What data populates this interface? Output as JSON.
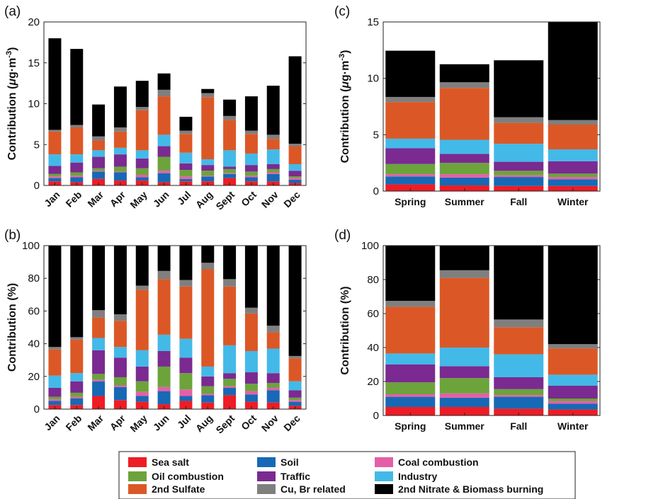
{
  "sources": [
    {
      "key": "sea_salt",
      "name": "Sea salt",
      "color": "#ee1c24"
    },
    {
      "key": "soil",
      "name": "Soil",
      "color": "#1769b5"
    },
    {
      "key": "coal",
      "name": "Coal combustion",
      "color": "#e55fa6"
    },
    {
      "key": "oil",
      "name": "Oil combustion",
      "color": "#6ca33b"
    },
    {
      "key": "traffic",
      "name": "Traffic",
      "color": "#7a2a90"
    },
    {
      "key": "industry",
      "name": "Industry",
      "color": "#43b9e8"
    },
    {
      "key": "sulfate",
      "name": "2nd Sulfate",
      "color": "#db5826"
    },
    {
      "key": "cubr",
      "name": "Cu, Br related",
      "color": "#7f7f7f"
    },
    {
      "key": "nitrate",
      "name": "2nd Nitrate & Biomass burning",
      "color": "#000000"
    }
  ],
  "chart_data": [
    {
      "panel": "(a)",
      "type": "bar",
      "stacked": true,
      "ylabel": "Contribution (μg·m⁻³)",
      "ylabel_main": "Contribution (",
      "ylabel_mu": "μ",
      "ylabel_unit": "g·m",
      "ylabel_exp": "-3",
      "ylabel_close": ")",
      "ylim": [
        0,
        20
      ],
      "yticks": [
        0,
        5,
        10,
        15,
        20
      ],
      "categories": [
        "Jan",
        "Feb",
        "Mar",
        "Apr",
        "May",
        "Jun",
        "Jul",
        "Aug",
        "Sept",
        "Oct",
        "Nov",
        "Dec"
      ],
      "series": [
        {
          "name": "Sea salt",
          "values": [
            0.5,
            0.4,
            0.8,
            0.6,
            0.6,
            0.4,
            0.5,
            0.5,
            0.9,
            0.5,
            0.5,
            0.3
          ]
        },
        {
          "name": "Soil",
          "values": [
            0.4,
            0.6,
            0.9,
            1.0,
            0.4,
            1.1,
            0.3,
            0.6,
            0.5,
            0.5,
            0.9,
            0.4
          ]
        },
        {
          "name": "Coal combustion",
          "values": [
            0.2,
            0.2,
            0.1,
            0.1,
            0.3,
            0.3,
            0.3,
            0.1,
            0.1,
            0.2,
            0.2,
            0.2
          ]
        },
        {
          "name": "Oil combustion",
          "values": [
            0.3,
            0.4,
            0.3,
            0.6,
            0.8,
            1.7,
            0.8,
            0.6,
            0.5,
            0.5,
            0.4,
            0.2
          ]
        },
        {
          "name": "Traffic",
          "values": [
            1.0,
            1.2,
            1.4,
            1.5,
            1.2,
            1.3,
            0.8,
            0.7,
            0.3,
            0.8,
            0.6,
            0.7
          ]
        },
        {
          "name": "Industry",
          "values": [
            1.4,
            1.0,
            0.8,
            0.8,
            1.0,
            1.4,
            1.3,
            0.7,
            2.0,
            1.4,
            1.8,
            0.8
          ]
        },
        {
          "name": "2nd Sulfate",
          "values": [
            2.8,
            3.3,
            1.2,
            2.0,
            4.9,
            4.7,
            2.3,
            7.6,
            3.7,
            2.4,
            1.3,
            2.2
          ]
        },
        {
          "name": "Cu, Br related",
          "values": [
            0.2,
            0.3,
            0.5,
            0.5,
            0.4,
            0.8,
            0.4,
            0.5,
            0.5,
            0.4,
            0.5,
            0.3
          ]
        },
        {
          "name": "2nd Nitrate & Biomass burning",
          "values": [
            11.2,
            9.3,
            3.9,
            5.0,
            3.2,
            2.0,
            1.7,
            0.5,
            2.0,
            4.2,
            6.0,
            10.7
          ]
        }
      ]
    },
    {
      "panel": "(b)",
      "type": "bar",
      "stacked": true,
      "ylabel": "Contribution (%)",
      "ylim": [
        0,
        100
      ],
      "yticks": [
        0,
        20,
        40,
        60,
        80,
        100
      ],
      "categories": [
        "Jan",
        "Feb",
        "Mar",
        "Apr",
        "May",
        "Jun",
        "Jul",
        "Aug",
        "Sept",
        "Oct",
        "Nov",
        "Dec"
      ],
      "series": [
        {
          "name": "Sea salt",
          "values": [
            2.5,
            2.5,
            8,
            5.5,
            4.5,
            3,
            5,
            4,
            8.5,
            4.5,
            4,
            2
          ]
        },
        {
          "name": "Soil",
          "values": [
            2.5,
            4,
            9,
            8,
            3.5,
            8,
            3,
            4.5,
            4.5,
            4.5,
            7.5,
            2.5
          ]
        },
        {
          "name": "Coal combustion",
          "values": [
            1,
            1,
            1,
            1,
            2.5,
            2.5,
            4,
            1,
            1,
            2,
            1.5,
            1
          ]
        },
        {
          "name": "Oil combustion",
          "values": [
            1.5,
            2.5,
            3.5,
            5,
            6.5,
            12.5,
            10,
            4.5,
            4.5,
            4.5,
            3,
            1.5
          ]
        },
        {
          "name": "Traffic",
          "values": [
            5.5,
            7,
            14.5,
            12,
            9,
            9.5,
            9.5,
            6,
            3.5,
            7,
            6,
            4.5
          ]
        },
        {
          "name": "Industry",
          "values": [
            7.5,
            5,
            7.5,
            6.5,
            10,
            10,
            11.5,
            6,
            17,
            13,
            15,
            5.5
          ]
        },
        {
          "name": "2nd Sulfate",
          "values": [
            16,
            20.5,
            12.5,
            16,
            37,
            34,
            32,
            59.5,
            36,
            23,
            10,
            14
          ]
        },
        {
          "name": "Cu, Br related",
          "values": [
            1.5,
            1.5,
            4.5,
            4,
            2.5,
            5,
            4,
            4,
            4.5,
            3.5,
            4,
            1.5
          ]
        },
        {
          "name": "2nd Nitrate & Biomass burning",
          "values": [
            62,
            56,
            39.5,
            42,
            24.5,
            15.5,
            21,
            10.5,
            20.5,
            38,
            49,
            67.5
          ]
        }
      ]
    },
    {
      "panel": "(c)",
      "type": "bar",
      "stacked": true,
      "ylabel": "Contribution (μg·m⁻³)",
      "ylabel_main": "Contribution (",
      "ylabel_mu": "μ",
      "ylabel_unit": "g·m",
      "ylabel_exp": "-3",
      "ylabel_close": ")",
      "ylim": [
        0,
        15
      ],
      "yticks": [
        0,
        5,
        10,
        15
      ],
      "categories": [
        "Spring",
        "Summer",
        "Fall",
        "Winter"
      ],
      "series": [
        {
          "name": "Sea salt",
          "values": [
            0.6,
            0.5,
            0.45,
            0.45
          ]
        },
        {
          "name": "Soil",
          "values": [
            0.7,
            0.7,
            0.8,
            0.6
          ]
        },
        {
          "name": "Coal combustion",
          "values": [
            0.2,
            0.3,
            0.15,
            0.2
          ]
        },
        {
          "name": "Oil combustion",
          "values": [
            0.9,
            1.0,
            0.4,
            0.3
          ]
        },
        {
          "name": "Traffic",
          "values": [
            1.4,
            0.8,
            0.8,
            1.1
          ]
        },
        {
          "name": "Industry",
          "values": [
            0.85,
            1.25,
            1.6,
            1.05
          ]
        },
        {
          "name": "2nd Sulfate",
          "values": [
            3.25,
            4.6,
            1.85,
            2.2
          ]
        },
        {
          "name": "Cu, Br related",
          "values": [
            0.45,
            0.5,
            0.5,
            0.4
          ]
        },
        {
          "name": "2nd Nitrate & Biomass burning",
          "values": [
            4.1,
            1.6,
            5.05,
            8.9
          ]
        }
      ]
    },
    {
      "panel": "(d)",
      "type": "bar",
      "stacked": true,
      "ylabel": "Contribution (%)",
      "ylim": [
        0,
        100
      ],
      "yticks": [
        0,
        20,
        40,
        60,
        80,
        100
      ],
      "categories": [
        "Spring",
        "Summer",
        "Fall",
        "Winter"
      ],
      "series": [
        {
          "name": "Sea salt",
          "values": [
            5,
            5,
            4,
            3.5
          ]
        },
        {
          "name": "Soil",
          "values": [
            6,
            5.5,
            7,
            3.5
          ]
        },
        {
          "name": "Coal combustion",
          "values": [
            1.5,
            2.5,
            1,
            1.5
          ]
        },
        {
          "name": "Oil combustion",
          "values": [
            7,
            9,
            3.5,
            1.5
          ]
        },
        {
          "name": "Traffic",
          "values": [
            10.5,
            7,
            7,
            7.5
          ]
        },
        {
          "name": "Industry",
          "values": [
            6.5,
            11,
            13.5,
            6.5
          ]
        },
        {
          "name": "2nd Sulfate",
          "values": [
            27.5,
            41,
            16,
            15.5
          ]
        },
        {
          "name": "Cu, Br related",
          "values": [
            3.5,
            4.5,
            4.5,
            2.5
          ]
        },
        {
          "name": "2nd Nitrate & Biomass burning",
          "values": [
            32.5,
            14.5,
            43.5,
            58
          ]
        }
      ]
    }
  ]
}
